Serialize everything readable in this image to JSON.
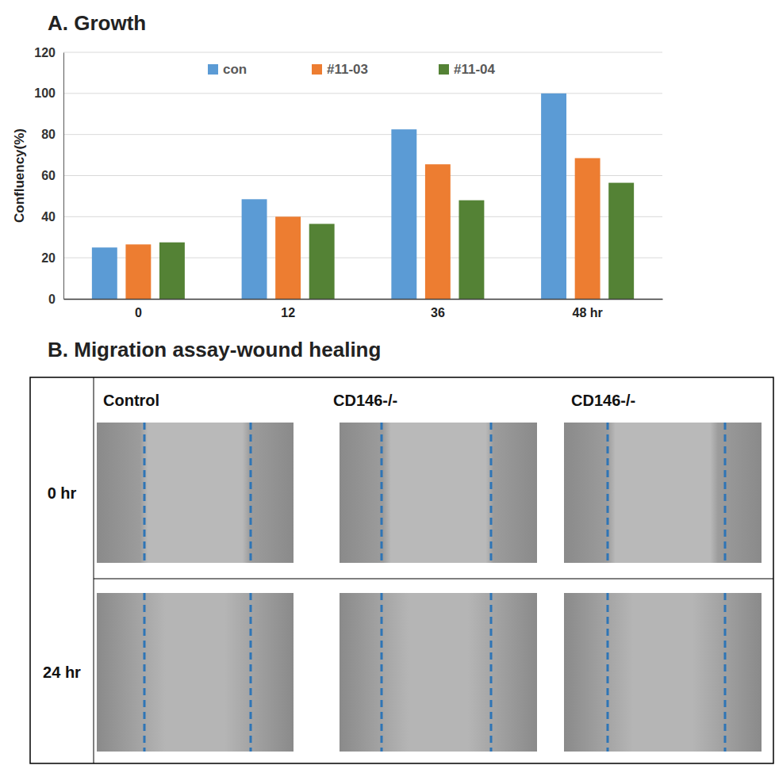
{
  "chart_data": {
    "type": "bar",
    "title": "A. Growth",
    "y_label": "Confluency(%)",
    "categories": [
      "0",
      "12",
      "36",
      "48 hr"
    ],
    "series": [
      {
        "name": "con",
        "color": "#5b9bd5",
        "values": [
          25,
          48.5,
          82.5,
          100
        ]
      },
      {
        "name": "#11-03",
        "color": "#ed7d31",
        "values": [
          26.5,
          40,
          65.5,
          68.5
        ]
      },
      {
        "name": "#11-04",
        "color": "#548235",
        "values": [
          27.5,
          36.5,
          48,
          56.5
        ]
      }
    ],
    "ylim": [
      0,
      120
    ],
    "yticks": [
      0,
      20,
      40,
      60,
      80,
      100,
      120
    ],
    "grid": true,
    "legend": "top"
  },
  "panel_b": {
    "title": "B. Migration assay-wound healing",
    "columns": [
      "Control",
      "CD146-/-",
      "CD146-/-"
    ],
    "rows": [
      "0 hr",
      "24 hr"
    ]
  }
}
